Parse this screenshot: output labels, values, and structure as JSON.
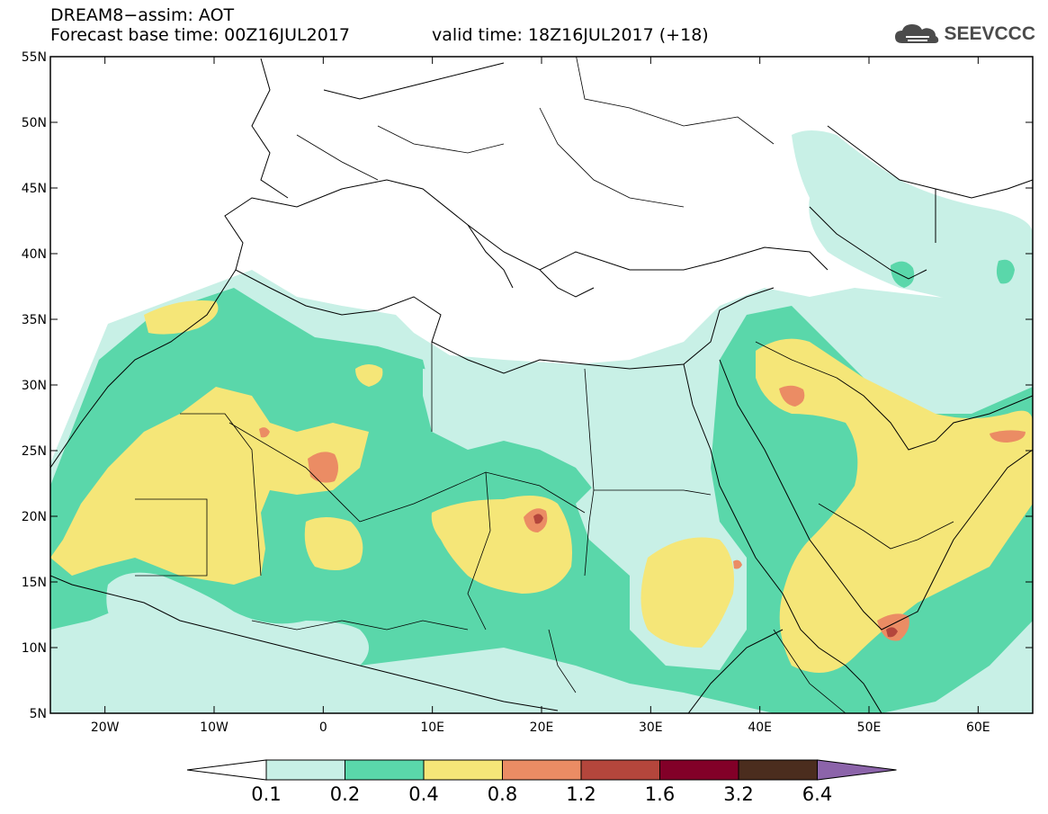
{
  "header": {
    "line1": "DREAM8−assim: AOT",
    "line2": "Forecast base time: 00Z16JUL2017",
    "valid": "valid time: 18Z16JUL2017 (+18)"
  },
  "logo": {
    "text": "SEEVCCC",
    "icon": "cloud-icon"
  },
  "map": {
    "lat_labels": [
      "55N",
      "50N",
      "45N",
      "40N",
      "35N",
      "30N",
      "25N",
      "20N",
      "15N",
      "10N",
      "5N"
    ],
    "lon_labels": [
      "20W",
      "10W",
      "0",
      "10E",
      "20E",
      "30E",
      "40E",
      "50E",
      "60E"
    ],
    "lon_range": [
      -25,
      65
    ],
    "lat_range": [
      5,
      55
    ]
  },
  "colorbar": {
    "labels": [
      "0.1",
      "0.2",
      "0.4",
      "0.8",
      "1.2",
      "1.6",
      "3.2",
      "6.4"
    ],
    "colors": [
      "#c8f0e6",
      "#5ad7aa",
      "#f5e678",
      "#eb8c64",
      "#b4463c",
      "#820028",
      "#4b2d1e",
      "#8c64aa"
    ]
  }
}
